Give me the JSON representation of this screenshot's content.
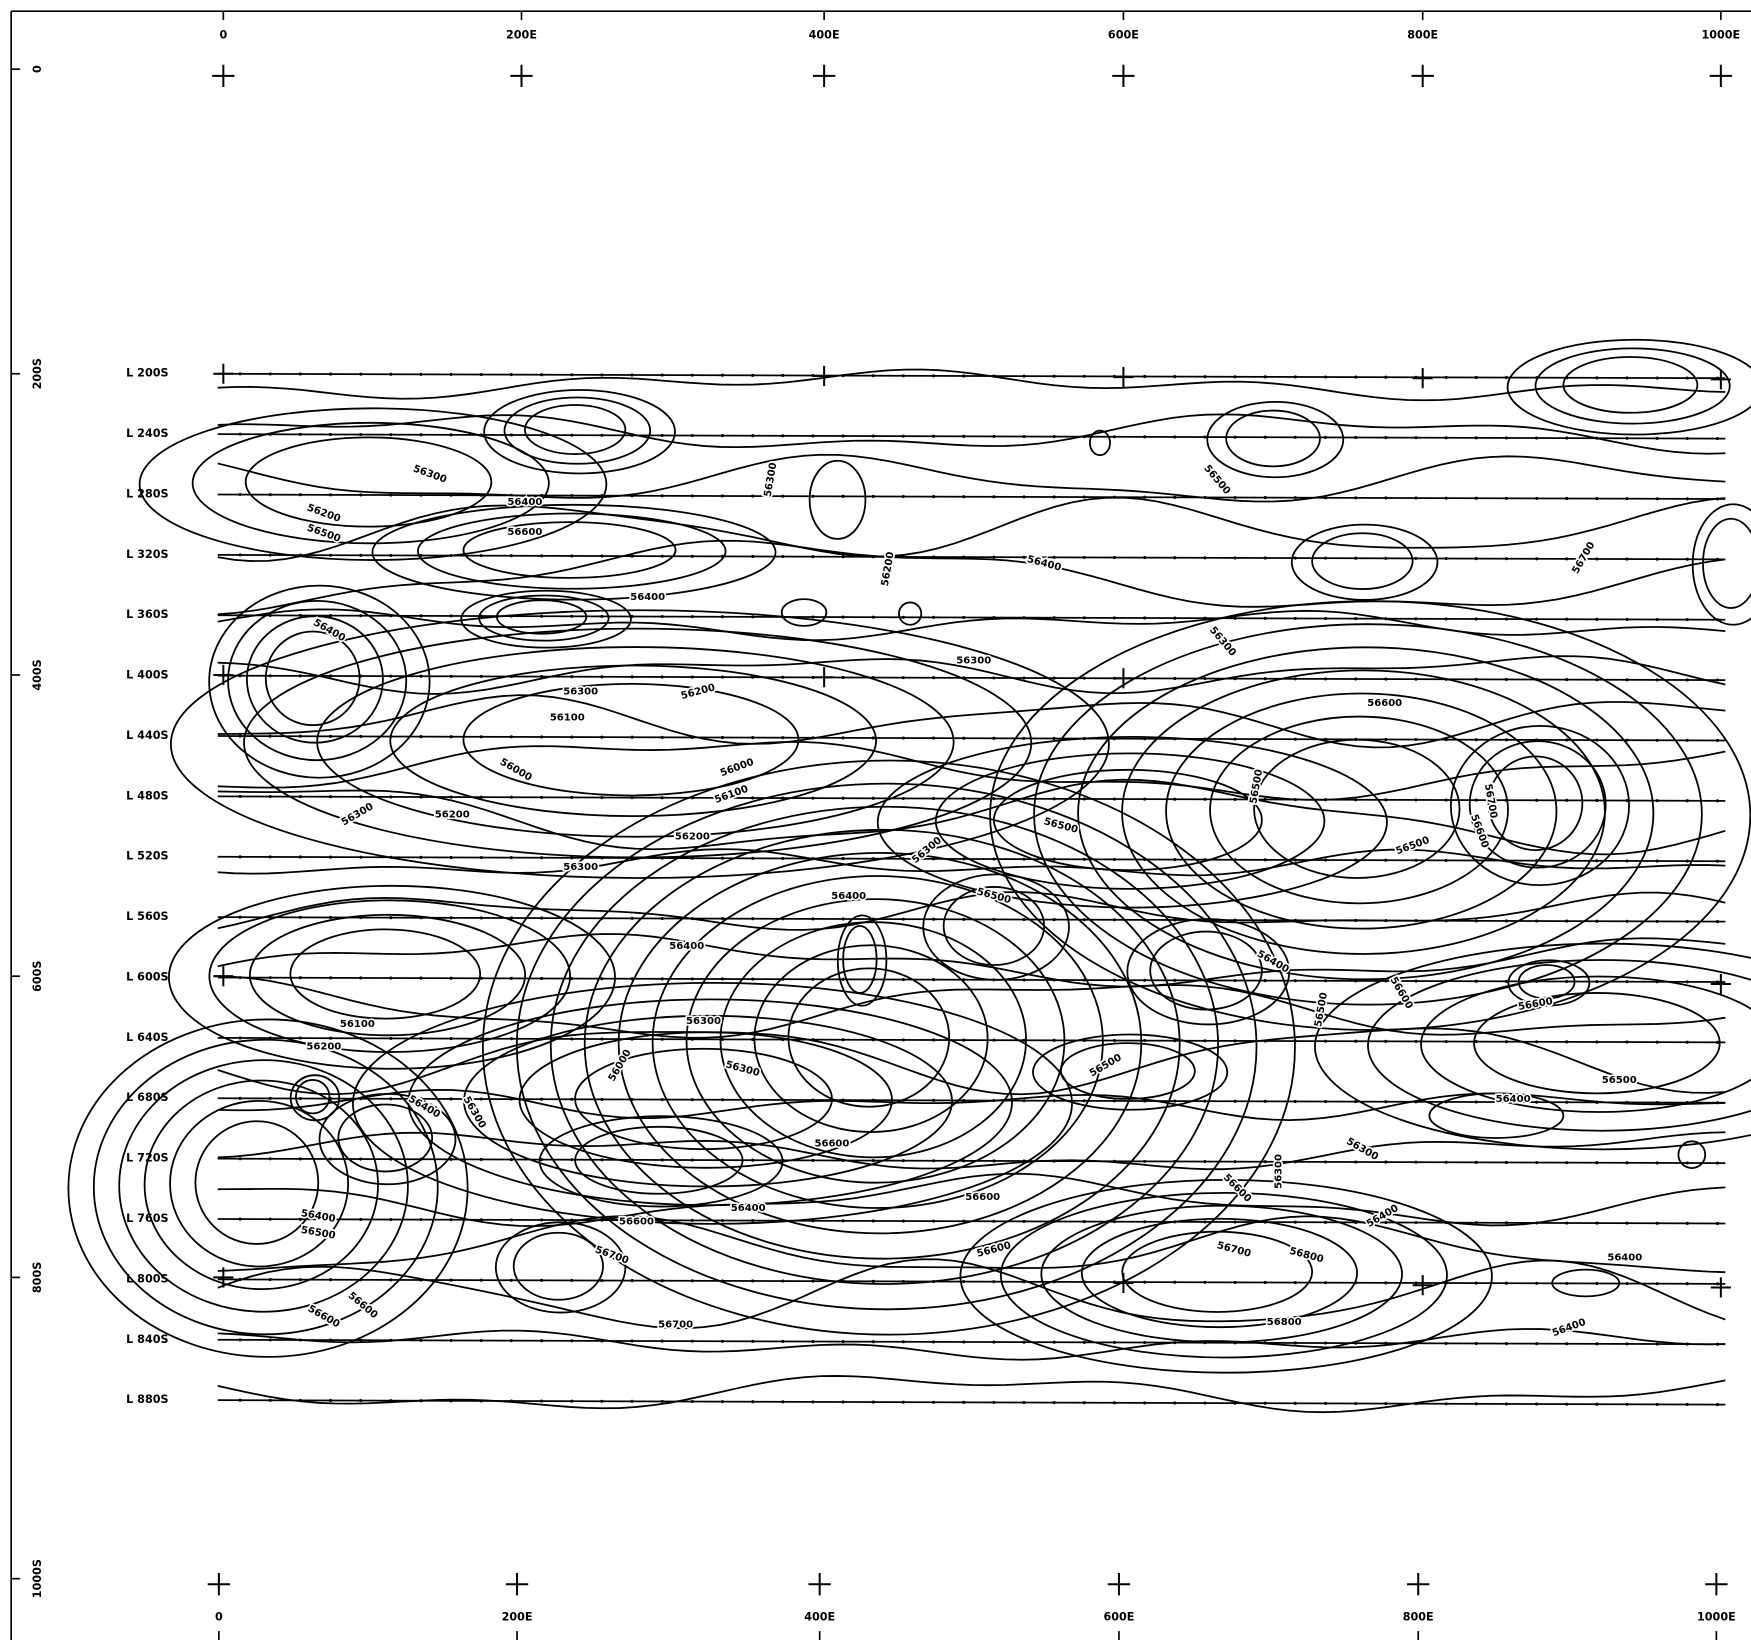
{
  "top_axis": {
    "labels": [
      "0",
      "200E",
      "400E",
      "600E",
      "800E",
      "1000E"
    ]
  },
  "bottom_axis": {
    "labels": [
      "0",
      "200E",
      "400E",
      "600E",
      "800E",
      "1000E"
    ]
  },
  "left_axis": {
    "labels": [
      "0",
      "200S",
      "400S",
      "600S",
      "800S",
      "1000S"
    ]
  },
  "survey_lines": {
    "labels": [
      "L 200S",
      "L 240S",
      "L 280S",
      "L 320S",
      "L 360S",
      "L 400S",
      "L 440S",
      "L 480S",
      "L 520S",
      "L 560S",
      "L 600S",
      "L 640S",
      "L 680S",
      "L 720S",
      "L 760S",
      "L 800S",
      "L 840S",
      "L 880S"
    ]
  },
  "contour_labels": [
    "56300",
    "56400",
    "56200",
    "56500",
    "56600",
    "56400",
    "56300",
    "56200",
    "56400",
    "56500",
    "56700",
    "56400",
    "56300",
    "56300",
    "56300",
    "56100",
    "56200",
    "56000",
    "56000",
    "56100",
    "56200",
    "56300",
    "56200",
    "56300",
    "56300",
    "56400",
    "56500",
    "56500",
    "56600",
    "56500",
    "56700",
    "56600",
    "56500",
    "56400",
    "56400",
    "56500",
    "56600",
    "56600",
    "56300",
    "56100",
    "56200",
    "56000",
    "56300",
    "56500",
    "56400",
    "56300",
    "56500",
    "56400",
    "56600",
    "56300",
    "56300",
    "56600",
    "56400",
    "56600",
    "56400",
    "56500",
    "56600",
    "56700",
    "56400",
    "56600",
    "56400",
    "56700",
    "56800",
    "56600",
    "56600",
    "56700",
    "56800",
    "56400"
  ]
}
